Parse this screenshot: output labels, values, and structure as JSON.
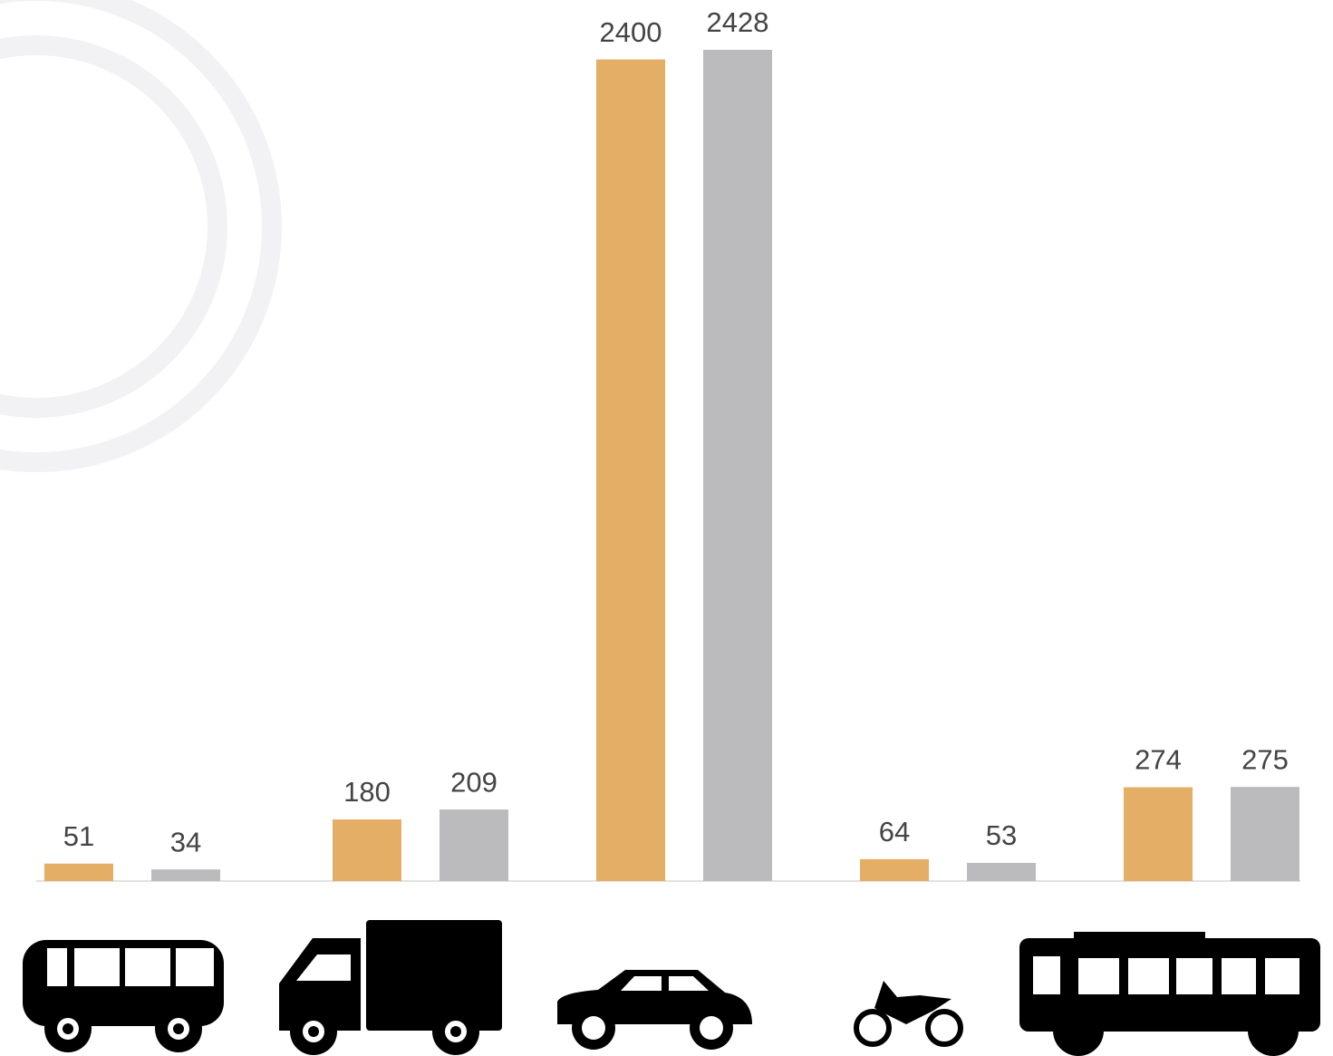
{
  "chart_data": {
    "type": "bar",
    "categories": [
      null,
      null,
      null,
      null,
      null
    ],
    "series": [
      {
        "color": "#e4ae67",
        "values": [
          51,
          180,
          2400,
          64,
          274
        ]
      },
      {
        "color": "#bbbbbd",
        "values": [
          34,
          209,
          2428,
          53,
          275
        ]
      }
    ]
  }
}
